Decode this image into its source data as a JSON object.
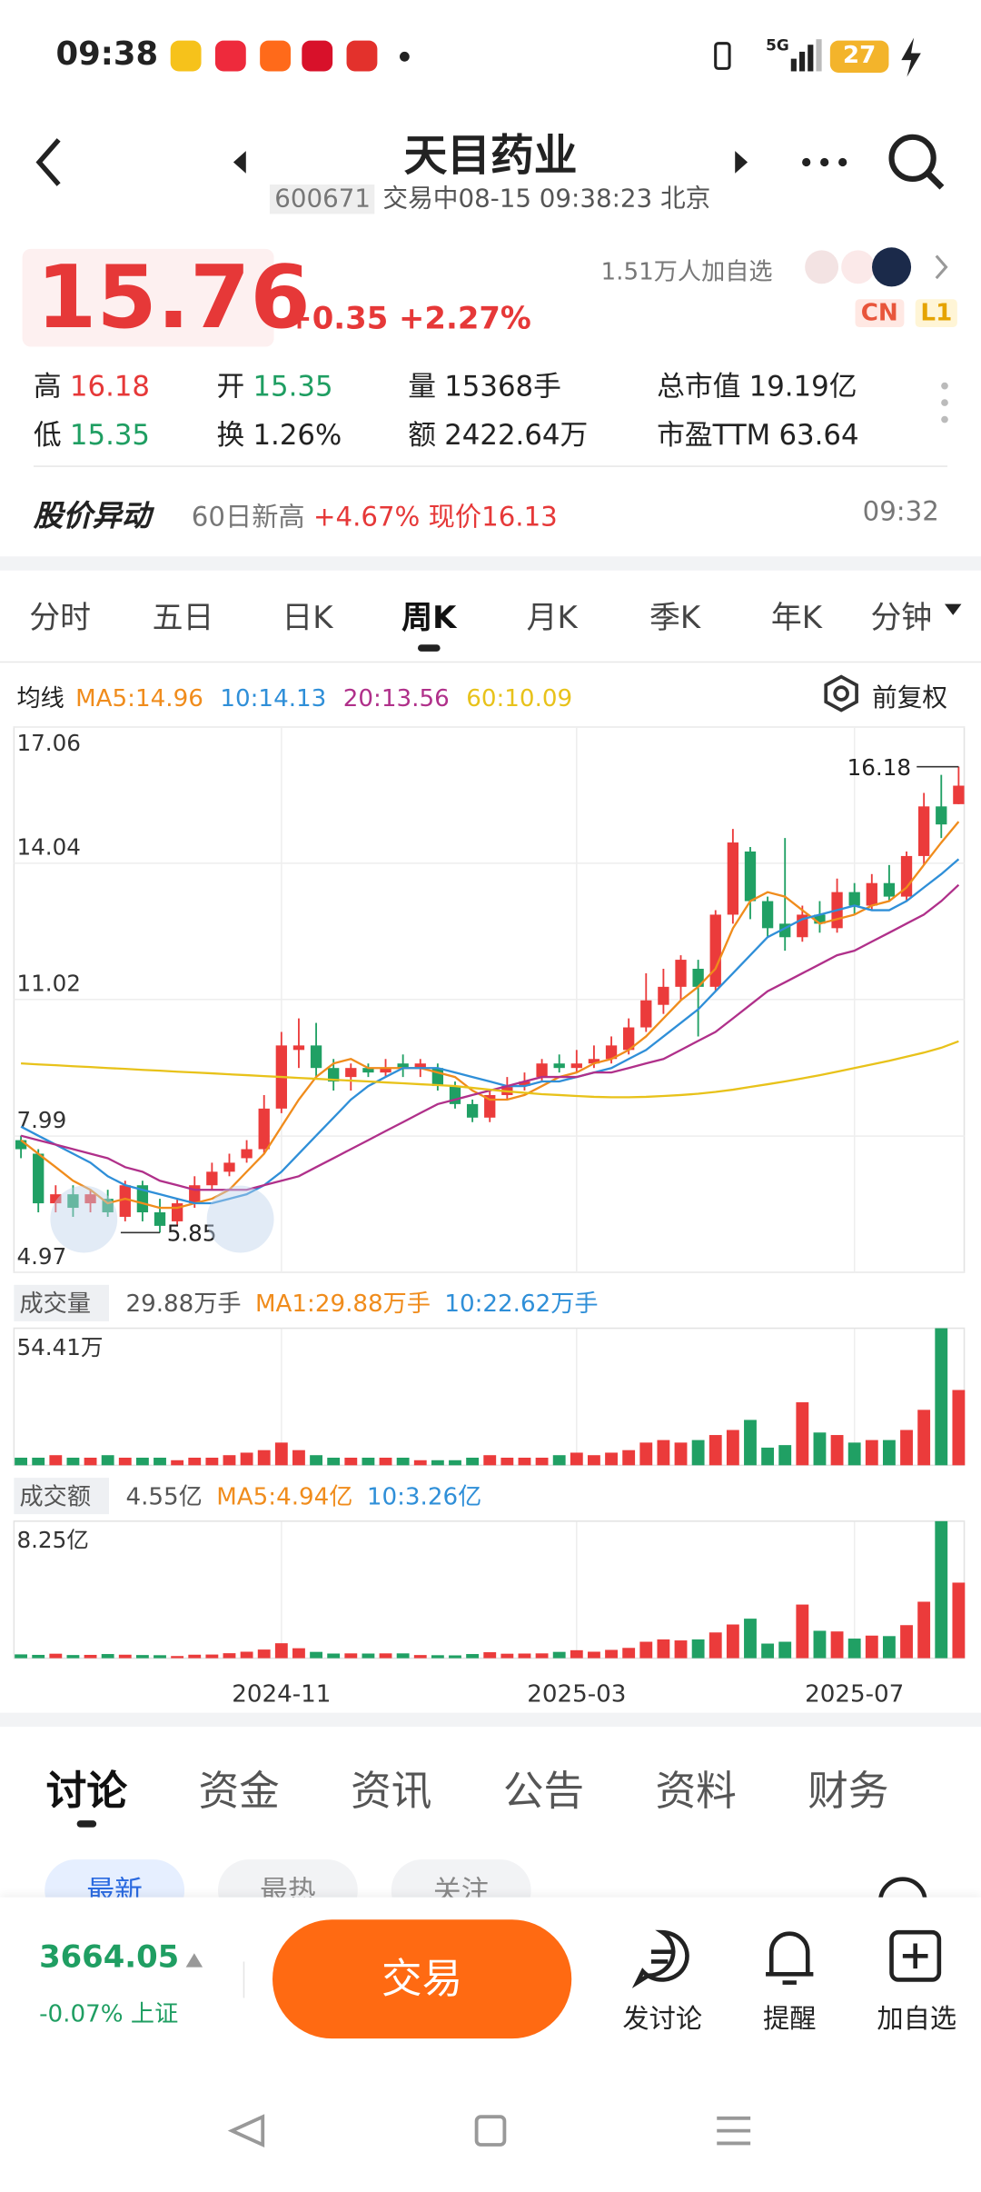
{
  "status": {
    "time": "09:38",
    "network": "5G",
    "battery": "27"
  },
  "header": {
    "title": "天目药业",
    "code": "600671",
    "status_text": "交易中08-15 09:38:23 北京"
  },
  "quote": {
    "price": "15.76",
    "change": "+0.35",
    "change_pct": "+2.27%",
    "followers": "1.51万人加自选",
    "badges": [
      "CN",
      "L1"
    ],
    "stats": [
      {
        "label": "高",
        "value": "16.18",
        "tone": "up"
      },
      {
        "label": "开",
        "value": "15.35",
        "tone": "down"
      },
      {
        "label": "量",
        "value": "15368手",
        "tone": "flat"
      },
      {
        "label": "总市值",
        "value": "19.19亿",
        "tone": "flat"
      },
      {
        "label": "低",
        "value": "15.35",
        "tone": "down"
      },
      {
        "label": "换",
        "value": "1.26%",
        "tone": "flat"
      },
      {
        "label": "额",
        "value": "2422.64万",
        "tone": "flat"
      },
      {
        "label": "市盈TTM",
        "value": "63.64",
        "tone": "flat"
      }
    ]
  },
  "alert": {
    "title": "股价异动",
    "text": "60日新高",
    "change": "+4.67%",
    "price_text": "现价16.13",
    "time": "09:32"
  },
  "period_tabs": {
    "items": [
      "分时",
      "五日",
      "日K",
      "周K",
      "月K",
      "季K",
      "年K",
      "分钟"
    ],
    "active": 3
  },
  "ma_legend": {
    "label": "均线",
    "adjust": "前复权"
  },
  "chart": {
    "type": "candlestick",
    "up_color": "#eb3b3b",
    "down_color": "#20a064",
    "ylim": [
      4.97,
      17.06
    ],
    "yticks": [
      17.06,
      14.04,
      11.02,
      7.99,
      4.97
    ],
    "xticks": [
      {
        "value": 15,
        "label": "2024-11"
      },
      {
        "value": 32,
        "label": "2025-03"
      },
      {
        "value": 48,
        "label": "2025-07"
      }
    ],
    "candles": {
      "open": [
        7.9,
        7.6,
        6.5,
        6.7,
        6.5,
        6.6,
        6.2,
        6.9,
        6.3,
        6.1,
        6.5,
        6.9,
        7.2,
        7.5,
        7.7,
        8.6,
        9.9,
        10.0,
        9.5,
        9.3,
        9.5,
        9.4,
        9.6,
        9.5,
        9.5,
        9.1,
        8.7,
        8.4,
        8.9,
        9.1,
        9.3,
        9.6,
        9.5,
        9.6,
        9.7,
        9.9,
        10.4,
        10.9,
        11.3,
        11.7,
        11.3,
        12.9,
        14.3,
        13.2,
        12.7,
        12.4,
        12.9,
        12.6,
        13.4,
        13.1,
        13.6,
        13.3,
        14.2,
        15.3,
        15.35
      ],
      "close": [
        7.7,
        6.5,
        6.7,
        6.4,
        6.7,
        6.3,
        6.9,
        6.3,
        6.0,
        6.5,
        6.9,
        7.2,
        7.4,
        7.7,
        8.6,
        10.0,
        10.0,
        9.5,
        9.2,
        9.5,
        9.4,
        9.5,
        9.5,
        9.6,
        9.1,
        8.7,
        8.4,
        8.9,
        9.1,
        9.2,
        9.6,
        9.5,
        9.6,
        9.7,
        10.0,
        10.4,
        11.0,
        11.3,
        11.9,
        11.3,
        12.9,
        14.5,
        13.2,
        12.6,
        12.4,
        12.9,
        12.7,
        13.4,
        13.1,
        13.6,
        13.3,
        14.2,
        15.3,
        14.9,
        15.76
      ],
      "high": [
        8.0,
        7.7,
        6.9,
        6.9,
        6.8,
        6.8,
        7.0,
        7.0,
        6.6,
        6.6,
        7.1,
        7.4,
        7.6,
        7.9,
        8.9,
        10.3,
        10.6,
        10.5,
        9.7,
        9.6,
        9.6,
        9.7,
        9.8,
        9.7,
        9.6,
        9.2,
        8.8,
        9.0,
        9.3,
        9.4,
        9.7,
        9.8,
        9.9,
        10.0,
        10.2,
        10.6,
        11.6,
        11.7,
        12.0,
        11.9,
        13.0,
        14.8,
        14.4,
        13.3,
        14.6,
        13.1,
        13.2,
        13.7,
        13.6,
        13.8,
        14.0,
        14.3,
        15.6,
        16.0,
        16.18
      ],
      "low": [
        7.5,
        6.3,
        6.3,
        6.2,
        6.3,
        6.2,
        6.1,
        6.1,
        5.85,
        6.0,
        6.4,
        6.8,
        7.1,
        7.4,
        7.6,
        8.5,
        9.5,
        9.3,
        9.0,
        9.0,
        9.3,
        9.3,
        9.3,
        9.3,
        9.0,
        8.6,
        8.3,
        8.3,
        8.8,
        9.0,
        9.2,
        9.4,
        9.4,
        9.5,
        9.6,
        9.8,
        10.3,
        10.7,
        11.0,
        10.2,
        11.2,
        12.7,
        12.8,
        12.4,
        12.1,
        12.3,
        12.5,
        12.5,
        12.9,
        13.0,
        13.2,
        13.2,
        14.0,
        14.6,
        15.35
      ]
    },
    "ma_lines": [
      {
        "name": "MA5:14.96",
        "color": "#f08c1c",
        "values": [
          7.9,
          7.6,
          7.3,
          7.0,
          6.8,
          6.5,
          6.6,
          6.5,
          6.4,
          6.4,
          6.5,
          6.6,
          6.8,
          7.2,
          7.6,
          8.2,
          8.8,
          9.3,
          9.6,
          9.7,
          9.5,
          9.5,
          9.5,
          9.5,
          9.4,
          9.3,
          9.0,
          8.8,
          8.8,
          8.9,
          9.1,
          9.3,
          9.4,
          9.6,
          9.7,
          9.9,
          10.2,
          10.6,
          11.0,
          11.3,
          11.7,
          12.6,
          13.2,
          13.4,
          13.3,
          13.0,
          12.7,
          12.8,
          12.9,
          13.1,
          13.2,
          13.5,
          14.0,
          14.5,
          14.96
        ]
      },
      {
        "name": "10:14.13",
        "color": "#2f8fd8",
        "values": [
          8.2,
          8.0,
          7.8,
          7.6,
          7.4,
          7.1,
          6.9,
          6.8,
          6.7,
          6.6,
          6.5,
          6.5,
          6.6,
          6.7,
          6.9,
          7.2,
          7.6,
          8.0,
          8.4,
          8.8,
          9.1,
          9.3,
          9.5,
          9.5,
          9.5,
          9.4,
          9.3,
          9.2,
          9.1,
          9.1,
          9.2,
          9.2,
          9.3,
          9.4,
          9.5,
          9.7,
          9.9,
          10.2,
          10.5,
          10.8,
          11.2,
          11.6,
          12.0,
          12.4,
          12.6,
          12.8,
          12.9,
          13.0,
          13.1,
          13.0,
          13.0,
          13.2,
          13.5,
          13.8,
          14.13
        ]
      },
      {
        "name": "20:13.56",
        "color": "#b0308a",
        "values": [
          8.0,
          7.9,
          7.8,
          7.7,
          7.6,
          7.5,
          7.3,
          7.2,
          7.0,
          6.9,
          6.8,
          6.8,
          6.8,
          6.8,
          6.9,
          7.0,
          7.1,
          7.3,
          7.5,
          7.7,
          7.9,
          8.1,
          8.3,
          8.5,
          8.7,
          8.8,
          8.9,
          9.0,
          9.1,
          9.2,
          9.3,
          9.3,
          9.3,
          9.4,
          9.4,
          9.5,
          9.6,
          9.7,
          9.9,
          10.1,
          10.3,
          10.6,
          10.9,
          11.2,
          11.4,
          11.6,
          11.8,
          12.0,
          12.1,
          12.3,
          12.5,
          12.7,
          12.9,
          13.2,
          13.56
        ]
      },
      {
        "name": "60:10.09",
        "color": "#e8c21a",
        "values": [
          9.6,
          9.58,
          9.56,
          9.54,
          9.52,
          9.5,
          9.48,
          9.46,
          9.44,
          9.42,
          9.4,
          9.38,
          9.36,
          9.34,
          9.32,
          9.3,
          9.28,
          9.26,
          9.24,
          9.22,
          9.2,
          9.18,
          9.16,
          9.14,
          9.12,
          9.1,
          9.06,
          9.02,
          8.98,
          8.95,
          8.92,
          8.9,
          8.88,
          8.86,
          8.85,
          8.85,
          8.86,
          8.88,
          8.9,
          8.93,
          8.97,
          9.02,
          9.08,
          9.14,
          9.2,
          9.27,
          9.34,
          9.42,
          9.5,
          9.58,
          9.66,
          9.75,
          9.84,
          9.95,
          10.09
        ]
      }
    ],
    "volume": {
      "label": "成交量",
      "current": "29.88万手",
      "ma_texts": [
        {
          "text": "MA1:29.88万手",
          "color": "#f08c1c"
        },
        {
          "text": "10:22.62万手",
          "color": "#2f8fd8"
        }
      ],
      "ylim": [
        0,
        54.41
      ],
      "ytick": {
        "value": 54.41,
        "label": "54.41万"
      },
      "values": [
        3,
        3,
        4,
        3,
        3,
        4,
        3,
        3,
        3,
        2,
        3,
        3,
        4,
        5,
        6,
        9,
        6,
        4,
        3,
        3,
        3,
        3,
        3,
        2,
        2,
        2,
        3,
        4,
        3,
        3,
        3,
        4,
        5,
        4,
        5,
        6,
        9,
        10,
        9,
        10,
        12,
        14,
        18,
        7,
        8,
        25,
        13,
        12,
        9,
        10,
        10,
        14,
        22,
        54.41,
        29.88
      ]
    },
    "amount": {
      "label": "成交额",
      "current": "4.55亿",
      "ma_texts": [
        {
          "text": "MA5:4.94亿",
          "color": "#f08c1c"
        },
        {
          "text": "10:3.26亿",
          "color": "#2f8fd8"
        }
      ],
      "ylim": [
        0,
        8.25
      ],
      "ytick": {
        "value": 8.25,
        "label": "8.25亿"
      },
      "values": [
        0.23,
        0.2,
        0.27,
        0.19,
        0.2,
        0.25,
        0.21,
        0.19,
        0.18,
        0.13,
        0.21,
        0.22,
        0.3,
        0.39,
        0.52,
        0.9,
        0.6,
        0.38,
        0.28,
        0.29,
        0.28,
        0.29,
        0.29,
        0.19,
        0.18,
        0.17,
        0.25,
        0.36,
        0.27,
        0.28,
        0.29,
        0.38,
        0.48,
        0.39,
        0.5,
        0.62,
        0.99,
        1.13,
        1.07,
        1.13,
        1.55,
        2.03,
        2.38,
        0.88,
        0.99,
        3.23,
        1.65,
        1.61,
        1.18,
        1.36,
        1.33,
        1.99,
        3.4,
        8.25,
        4.55
      ]
    }
  },
  "info_tabs": {
    "items": [
      "讨论",
      "资金",
      "资讯",
      "公告",
      "资料",
      "财务"
    ],
    "active": 0
  },
  "sub_tabs": {
    "items": [
      "最新",
      "最热",
      "关注"
    ],
    "active": 0
  },
  "footer": {
    "index_value": "3664.05",
    "index_change": "-0.07%",
    "index_name": "上证",
    "trade": "交易",
    "actions": [
      "发讨论",
      "提醒",
      "加自选"
    ]
  }
}
